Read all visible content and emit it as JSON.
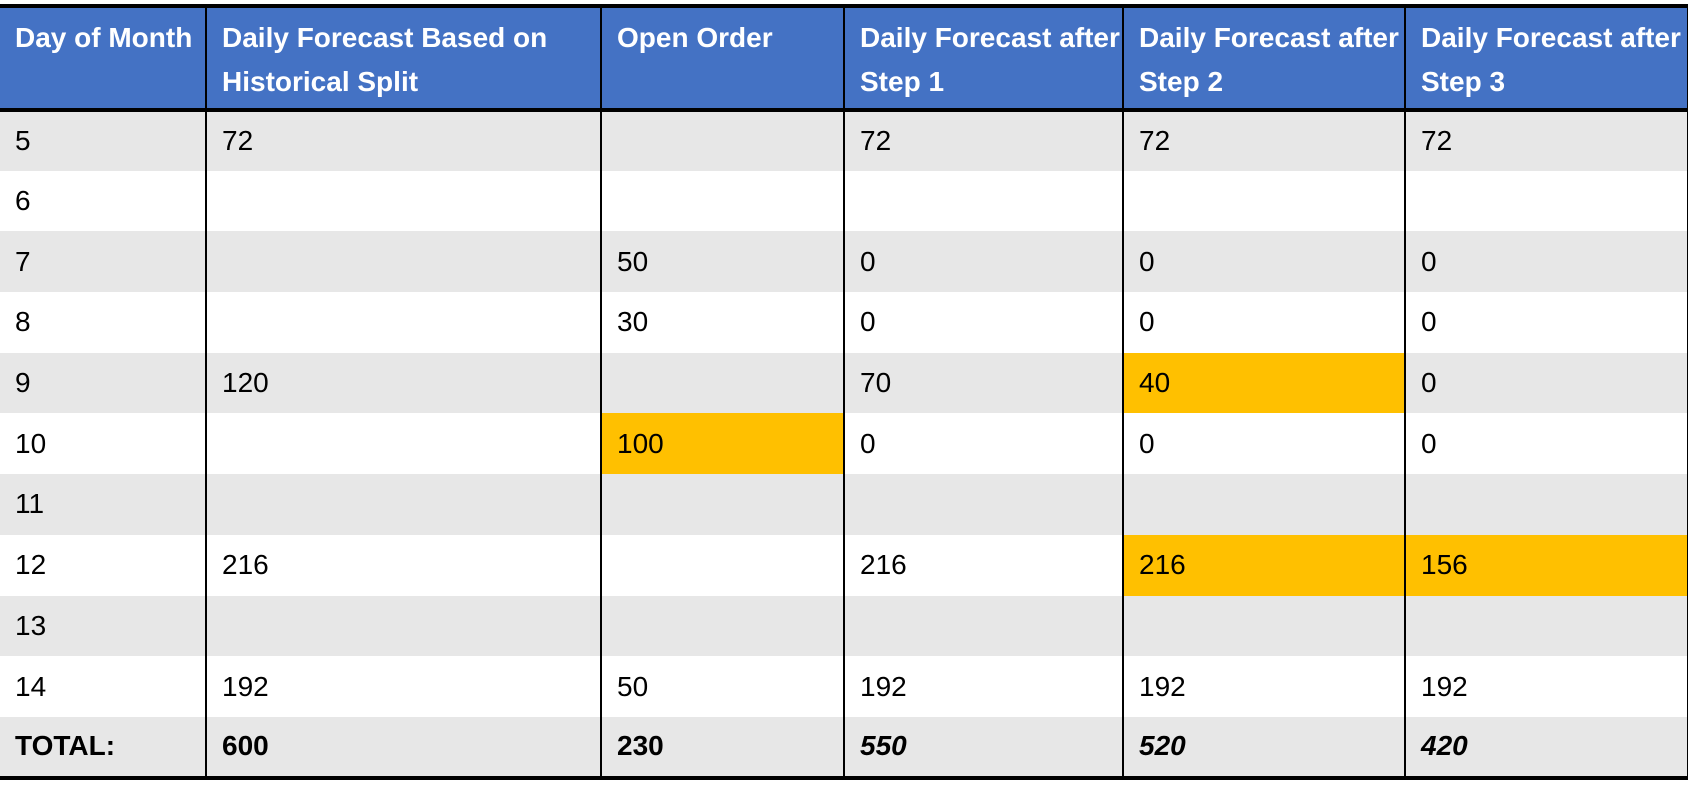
{
  "table": {
    "headers": [
      "Day of Month",
      "Daily Forecast Based on Historical Split",
      "Open Order",
      "Daily Forecast after Step 1",
      "Daily Forecast after Step 2",
      "Daily Forecast after Step 3"
    ],
    "highlight_color": "#ffc000",
    "rows": [
      [
        "5",
        "72",
        null,
        "72",
        "72",
        "72"
      ],
      [
        "6",
        null,
        null,
        null,
        null,
        null
      ],
      [
        "7",
        null,
        "50",
        "0",
        "0",
        "0"
      ],
      [
        "8",
        null,
        "30",
        "0",
        "0",
        "0"
      ],
      [
        "9",
        "120",
        null,
        "70",
        {
          "text": "40",
          "highlight": true
        },
        "0"
      ],
      [
        "10",
        null,
        {
          "text": "100",
          "highlight": true
        },
        "0",
        "0",
        "0"
      ],
      [
        "11",
        null,
        null,
        null,
        null,
        null
      ],
      [
        "12",
        "216",
        null,
        "216",
        {
          "text": "216",
          "highlight": true
        },
        {
          "text": "156",
          "highlight": true
        }
      ],
      [
        "13",
        null,
        null,
        null,
        null,
        null
      ],
      [
        "14",
        "192",
        "50",
        "192",
        "192",
        "192"
      ]
    ],
    "total": [
      "TOTAL:",
      "600",
      "230",
      "550",
      "520",
      "420"
    ]
  }
}
